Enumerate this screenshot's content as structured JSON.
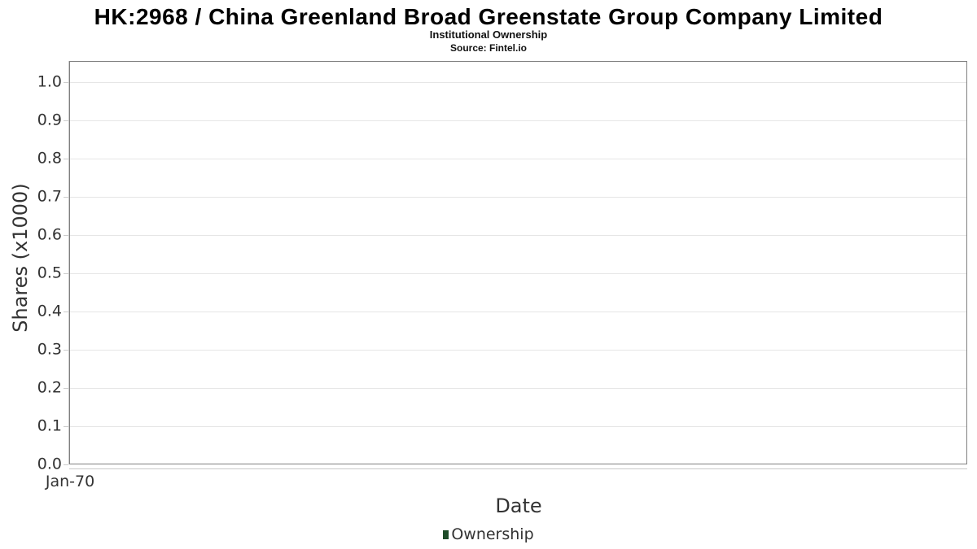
{
  "header": {
    "title": "HK:2968 / China Greenland Broad Greenstate Group Company Limited",
    "subtitle": "Institutional Ownership",
    "source": "Source: Fintel.io"
  },
  "chart_data": {
    "type": "bar",
    "title": "Institutional Ownership",
    "xlabel": "Date",
    "ylabel": "Shares (x1000)",
    "ylim": [
      0.0,
      1.0
    ],
    "y_tick_step": 0.1,
    "y_tick_labels": [
      "0.0",
      "0.1",
      "0.2",
      "0.3",
      "0.4",
      "0.5",
      "0.6",
      "0.7",
      "0.8",
      "0.9",
      "1.0"
    ],
    "x_tick_labels": [
      "Jan-70"
    ],
    "grid": "horizontal",
    "legend_position": "bottom",
    "series": [
      {
        "name": "Ownership",
        "x": [],
        "values": []
      }
    ]
  },
  "legend": {
    "entries": [
      {
        "label": "Ownership",
        "color": "#1e4c28"
      }
    ]
  },
  "colors": {
    "plot_border": "#808080",
    "grid_line": "#e6e6e6",
    "axis_line": "#cccccc",
    "text": "#333333",
    "legend_marker": "#1e4c28"
  }
}
